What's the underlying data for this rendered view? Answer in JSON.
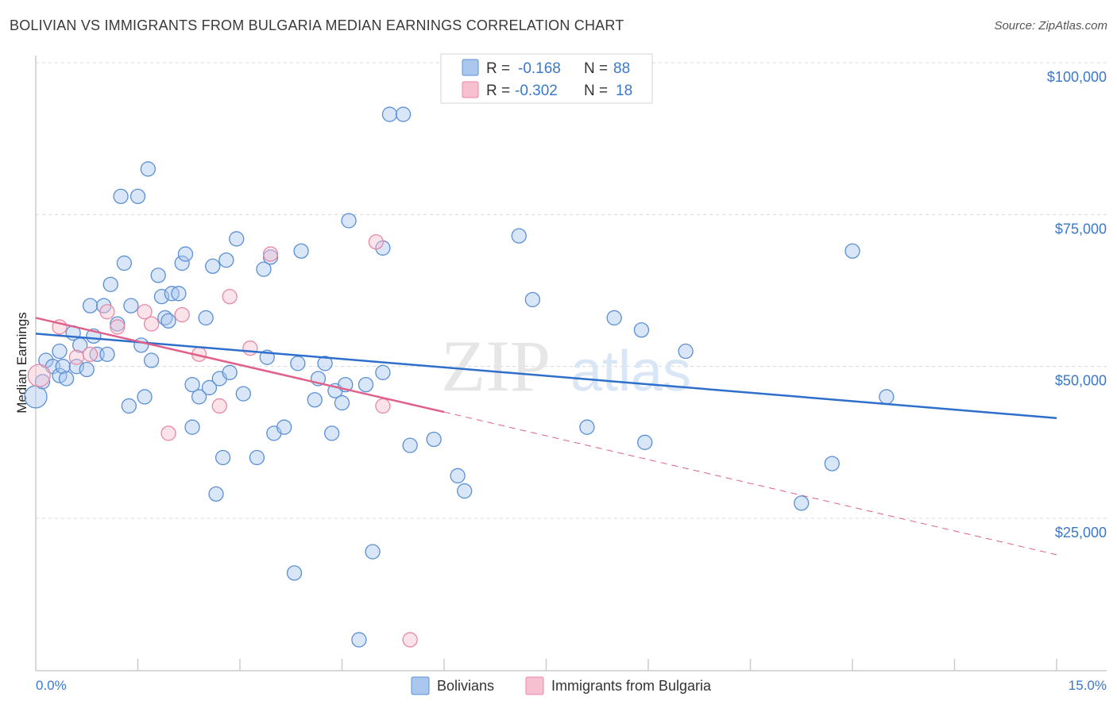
{
  "header": {
    "title": "BOLIVIAN VS IMMIGRANTS FROM BULGARIA MEDIAN EARNINGS CORRELATION CHART",
    "source": "Source: ZipAtlas.com"
  },
  "watermark": {
    "zip": "ZIP",
    "atlas": "atlas"
  },
  "colors": {
    "blue_fill": "#aac8ee",
    "blue_stroke": "#5b8fd6",
    "blue_line": "#2f6fcc",
    "pink_fill": "#f7c0d0",
    "pink_stroke": "#e888a6",
    "pink_line": "#e0608a",
    "grid": "#d8d8d8",
    "accent_text": "#3b78c8"
  },
  "legend": {
    "rows": [
      {
        "r_label": "R =",
        "r_value": "-0.168",
        "n_label": "N =",
        "n_value": "88"
      },
      {
        "r_label": "R =",
        "r_value": "-0.302",
        "n_label": "N =",
        "n_value": "18"
      }
    ]
  },
  "bottom_legend": {
    "series1": "Bolivians",
    "series2": "Immigrants from Bulgaria"
  },
  "chart_data": {
    "type": "scatter",
    "title": "BOLIVIAN VS IMMIGRANTS FROM BULGARIA MEDIAN EARNINGS CORRELATION CHART",
    "xlabel": "",
    "ylabel": "Median Earnings",
    "xlim": [
      0,
      15
    ],
    "ylim": [
      0,
      105000
    ],
    "x_tick_labels": {
      "left": "0.0%",
      "right": "15.0%"
    },
    "y_ticks": [
      {
        "value": 25000,
        "label": "$25,000"
      },
      {
        "value": 50000,
        "label": "$50,000"
      },
      {
        "value": 75000,
        "label": "$75,000"
      },
      {
        "value": 100000,
        "label": "$100,000"
      }
    ],
    "series": [
      {
        "name": "Bolivians",
        "r": -0.168,
        "n": 88,
        "trend": {
          "x0": 0,
          "y0": 55400,
          "x1": 15,
          "y1": 41500
        },
        "points": [
          [
            0.0,
            45000,
            14
          ],
          [
            0.1,
            47500,
            9
          ],
          [
            0.15,
            51000,
            9
          ],
          [
            0.25,
            50000,
            9
          ],
          [
            0.35,
            48500,
            9
          ],
          [
            0.35,
            52500,
            9
          ],
          [
            0.4,
            50000,
            9
          ],
          [
            0.45,
            48000,
            9
          ],
          [
            0.55,
            55500,
            9
          ],
          [
            0.6,
            50000,
            9
          ],
          [
            0.65,
            53500,
            9
          ],
          [
            0.75,
            49500,
            9
          ],
          [
            0.8,
            60000,
            9
          ],
          [
            0.85,
            55000,
            9
          ],
          [
            0.9,
            52000,
            9
          ],
          [
            1.0,
            60000,
            9
          ],
          [
            1.05,
            52000,
            9
          ],
          [
            1.1,
            63500,
            9
          ],
          [
            1.2,
            57000,
            9
          ],
          [
            1.25,
            78000,
            9
          ],
          [
            1.3,
            67000,
            9
          ],
          [
            1.4,
            60000,
            9
          ],
          [
            1.37,
            43500,
            9
          ],
          [
            1.5,
            78000,
            9
          ],
          [
            1.55,
            53500,
            9
          ],
          [
            1.6,
            45000,
            9
          ],
          [
            1.65,
            82500,
            9
          ],
          [
            1.7,
            51000,
            9
          ],
          [
            1.8,
            65000,
            9
          ],
          [
            1.85,
            61500,
            9
          ],
          [
            1.9,
            58000,
            9
          ],
          [
            1.95,
            57500,
            9
          ],
          [
            2.0,
            62000,
            9
          ],
          [
            2.1,
            62000,
            9
          ],
          [
            2.15,
            67000,
            9
          ],
          [
            2.2,
            68500,
            9
          ],
          [
            2.3,
            47000,
            9
          ],
          [
            2.3,
            40000,
            9
          ],
          [
            2.4,
            45000,
            9
          ],
          [
            2.5,
            58000,
            9
          ],
          [
            2.55,
            46500,
            9
          ],
          [
            2.6,
            66500,
            9
          ],
          [
            2.65,
            29000,
            9
          ],
          [
            2.7,
            48000,
            9
          ],
          [
            2.75,
            35000,
            9
          ],
          [
            2.8,
            67500,
            9
          ],
          [
            2.85,
            49000,
            9
          ],
          [
            2.95,
            71000,
            9
          ],
          [
            3.05,
            45500,
            9
          ],
          [
            3.25,
            35000,
            9
          ],
          [
            3.35,
            66000,
            9
          ],
          [
            3.45,
            68000,
            9
          ],
          [
            3.4,
            51500,
            9
          ],
          [
            3.5,
            39000,
            9
          ],
          [
            3.65,
            40000,
            9
          ],
          [
            3.8,
            16000,
            9
          ],
          [
            3.85,
            50500,
            9
          ],
          [
            3.9,
            69000,
            9
          ],
          [
            4.1,
            44500,
            9
          ],
          [
            4.15,
            48000,
            9
          ],
          [
            4.25,
            50500,
            9
          ],
          [
            4.35,
            39000,
            9
          ],
          [
            4.4,
            46000,
            9
          ],
          [
            4.5,
            44000,
            9
          ],
          [
            4.55,
            47000,
            9
          ],
          [
            4.6,
            74000,
            9
          ],
          [
            4.75,
            5000,
            9
          ],
          [
            4.85,
            47000,
            9
          ],
          [
            4.95,
            19500,
            9
          ],
          [
            5.1,
            69500,
            9
          ],
          [
            5.1,
            49000,
            9
          ],
          [
            5.2,
            91500,
            9
          ],
          [
            5.4,
            91500,
            9
          ],
          [
            5.5,
            37000,
            9
          ],
          [
            5.85,
            38000,
            9
          ],
          [
            6.2,
            32000,
            9
          ],
          [
            6.3,
            29500,
            9
          ],
          [
            7.1,
            71500,
            9
          ],
          [
            7.3,
            61000,
            9
          ],
          [
            8.1,
            40000,
            9
          ],
          [
            8.5,
            58000,
            9
          ],
          [
            8.9,
            56000,
            9
          ],
          [
            8.95,
            37500,
            9
          ],
          [
            9.55,
            52500,
            9
          ],
          [
            11.25,
            27500,
            9
          ],
          [
            11.7,
            34000,
            9
          ],
          [
            12.0,
            69000,
            9
          ],
          [
            12.5,
            45000,
            9
          ]
        ]
      },
      {
        "name": "Immigrants from Bulgaria",
        "r": -0.302,
        "n": 18,
        "trend": {
          "x0": 0,
          "y0": 58000,
          "x1": 6.0,
          "y1": 42500,
          "dash_x1": 15,
          "dash_y1": 19000
        },
        "points": [
          [
            0.05,
            48500,
            14
          ],
          [
            0.35,
            56500,
            9
          ],
          [
            0.6,
            51500,
            9
          ],
          [
            0.8,
            52000,
            9
          ],
          [
            1.05,
            59000,
            9
          ],
          [
            1.2,
            56500,
            9
          ],
          [
            1.6,
            59000,
            9
          ],
          [
            1.7,
            57000,
            9
          ],
          [
            1.95,
            39000,
            9
          ],
          [
            2.15,
            58500,
            9
          ],
          [
            2.4,
            52000,
            9
          ],
          [
            2.7,
            43500,
            9
          ],
          [
            2.85,
            61500,
            9
          ],
          [
            3.15,
            53000,
            9
          ],
          [
            3.45,
            68500,
            9
          ],
          [
            5.0,
            70500,
            9
          ],
          [
            5.1,
            43500,
            9
          ],
          [
            5.5,
            5000,
            9
          ]
        ]
      }
    ]
  }
}
